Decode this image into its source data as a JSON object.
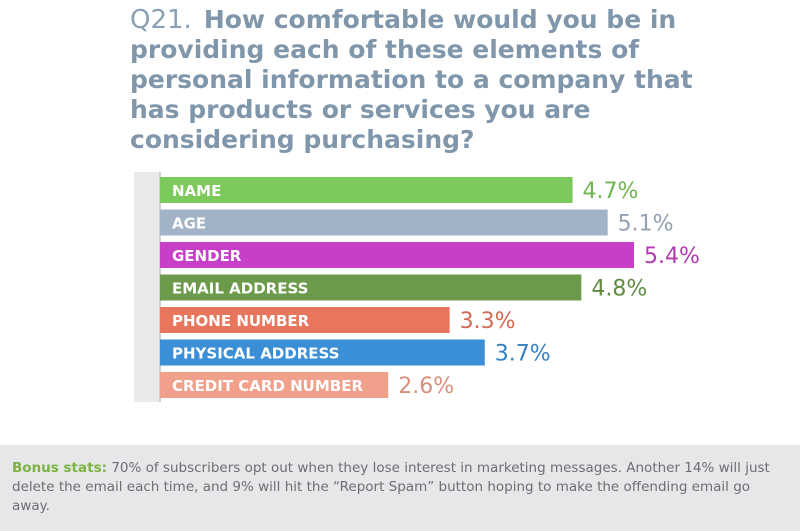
{
  "chart_data": {
    "type": "bar",
    "orientation": "horizontal",
    "question_number": "Q21.",
    "title_lines": [
      "How comfortable would you be in",
      "providing each of these elements of",
      "personal information to a company that",
      "has products or services you are",
      "considering purchasing?"
    ],
    "categories": [
      "NAME",
      "AGE",
      "GENDER",
      "EMAIL ADDRESS",
      "PHONE NUMBER",
      "PHYSICAL ADDRESS",
      "CREDIT CARD NUMBER"
    ],
    "values": [
      4.7,
      5.1,
      5.4,
      4.8,
      3.3,
      3.7,
      2.6
    ],
    "value_labels": [
      "4.7%",
      "5.1%",
      "5.4%",
      "4.8%",
      "3.3%",
      "3.7%",
      "2.6%"
    ],
    "colors": [
      "#7cc95c",
      "#a2b3c8",
      "#c63fc6",
      "#6b9a4b",
      "#e8765c",
      "#3b8fd6",
      "#f0a08b"
    ],
    "note_label": "Bonus stats:",
    "note": "70% of subscribers opt out when they lose interest in marketing messages. Another 14% will just delete the email each time, and 9% will hit the “Report Spam” button hoping to make the offending email go away."
  }
}
